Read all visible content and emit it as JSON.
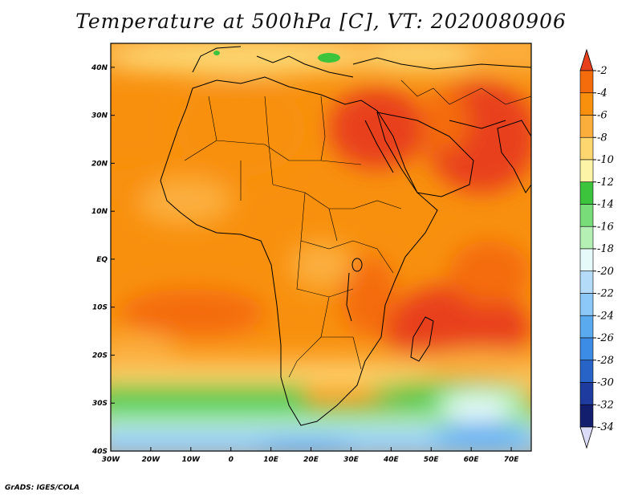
{
  "title": "Temperature at 500hPa [C], VT: 2020080906",
  "credit": "GrADS: IGES/COLA",
  "chart_data": {
    "type": "heatmap",
    "variable": "Temperature at 500hPa",
    "units": "C",
    "valid_time": "2020080906",
    "x_axis": {
      "range": [
        -30,
        75
      ],
      "ticks": [
        -30,
        -20,
        -10,
        0,
        10,
        20,
        30,
        40,
        50,
        60,
        70
      ],
      "labels": [
        "30W",
        "20W",
        "10W",
        "0",
        "10E",
        "20E",
        "30E",
        "40E",
        "50E",
        "60E",
        "70E"
      ]
    },
    "y_axis": {
      "range": [
        -40,
        45
      ],
      "ticks": [
        -40,
        -30,
        -20,
        -10,
        0,
        10,
        20,
        30,
        40
      ],
      "labels": [
        "40S",
        "30S",
        "20S",
        "10S",
        "EQ",
        "10N",
        "20N",
        "30N",
        "40N"
      ]
    },
    "colorbar": {
      "levels": [
        -2,
        -4,
        -6,
        -8,
        -10,
        -12,
        -14,
        -16,
        -18,
        -20,
        -22,
        -24,
        -26,
        -28,
        -30,
        -32,
        -34
      ],
      "colors": [
        "#e8401c",
        "#f46c0c",
        "#f8900e",
        "#fbae3c",
        "#fdd670",
        "#fef4a8",
        "#3cc43c",
        "#78dc78",
        "#b4f0b4",
        "#e6fafa",
        "#b4dcf8",
        "#8cc8f8",
        "#5aaaf0",
        "#3c8ce6",
        "#2864c8",
        "#1e3ca0",
        "#141e6e"
      ],
      "over_color": "#e8401c",
      "under_color": "#dcdcf8"
    },
    "coastlines": true,
    "country_borders": true
  }
}
